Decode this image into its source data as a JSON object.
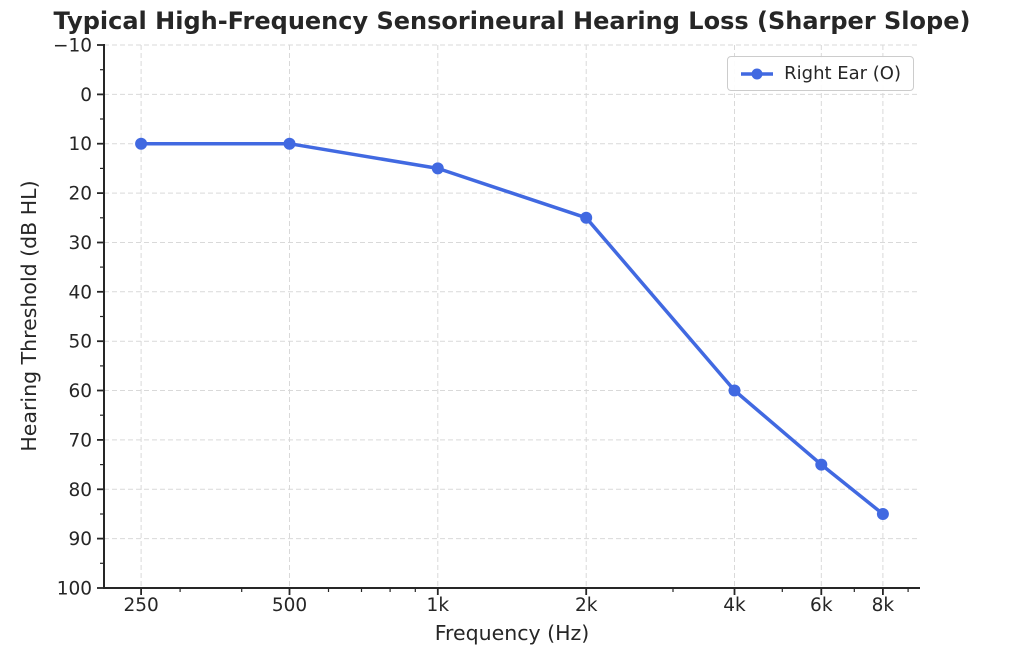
{
  "chart_data": {
    "type": "line",
    "title": "Typical High-Frequency Sensorineural Hearing Loss (Sharper Slope)",
    "xlabel": "Frequency (Hz)",
    "ylabel": "Hearing Threshold (dB HL)",
    "x_scale": "log",
    "categories": [
      "250",
      "500",
      "1k",
      "2k",
      "4k",
      "6k",
      "8k"
    ],
    "x_hz": [
      250,
      500,
      1000,
      2000,
      4000,
      6000,
      8000
    ],
    "series": [
      {
        "name": "Right Ear (O)",
        "values": [
          10,
          10,
          15,
          25,
          60,
          75,
          85
        ],
        "color": "#4169E1",
        "marker": "circle"
      }
    ],
    "y_ticks": [
      -10,
      0,
      10,
      20,
      30,
      40,
      50,
      60,
      70,
      80,
      90,
      100
    ],
    "ylim": [
      -10,
      100
    ],
    "y_inverted": true,
    "grid": true,
    "grid_style": "dashed",
    "legend_position": "upper right",
    "minor_x_ticks_hz": [
      300,
      400,
      600,
      700,
      800,
      900,
      3000,
      5000,
      7000,
      9000
    ],
    "colors": {
      "line": "#4169E1",
      "grid": "#d9d9d9",
      "axis": "#262626",
      "text": "#262626",
      "legend_border": "#cccccc"
    }
  }
}
